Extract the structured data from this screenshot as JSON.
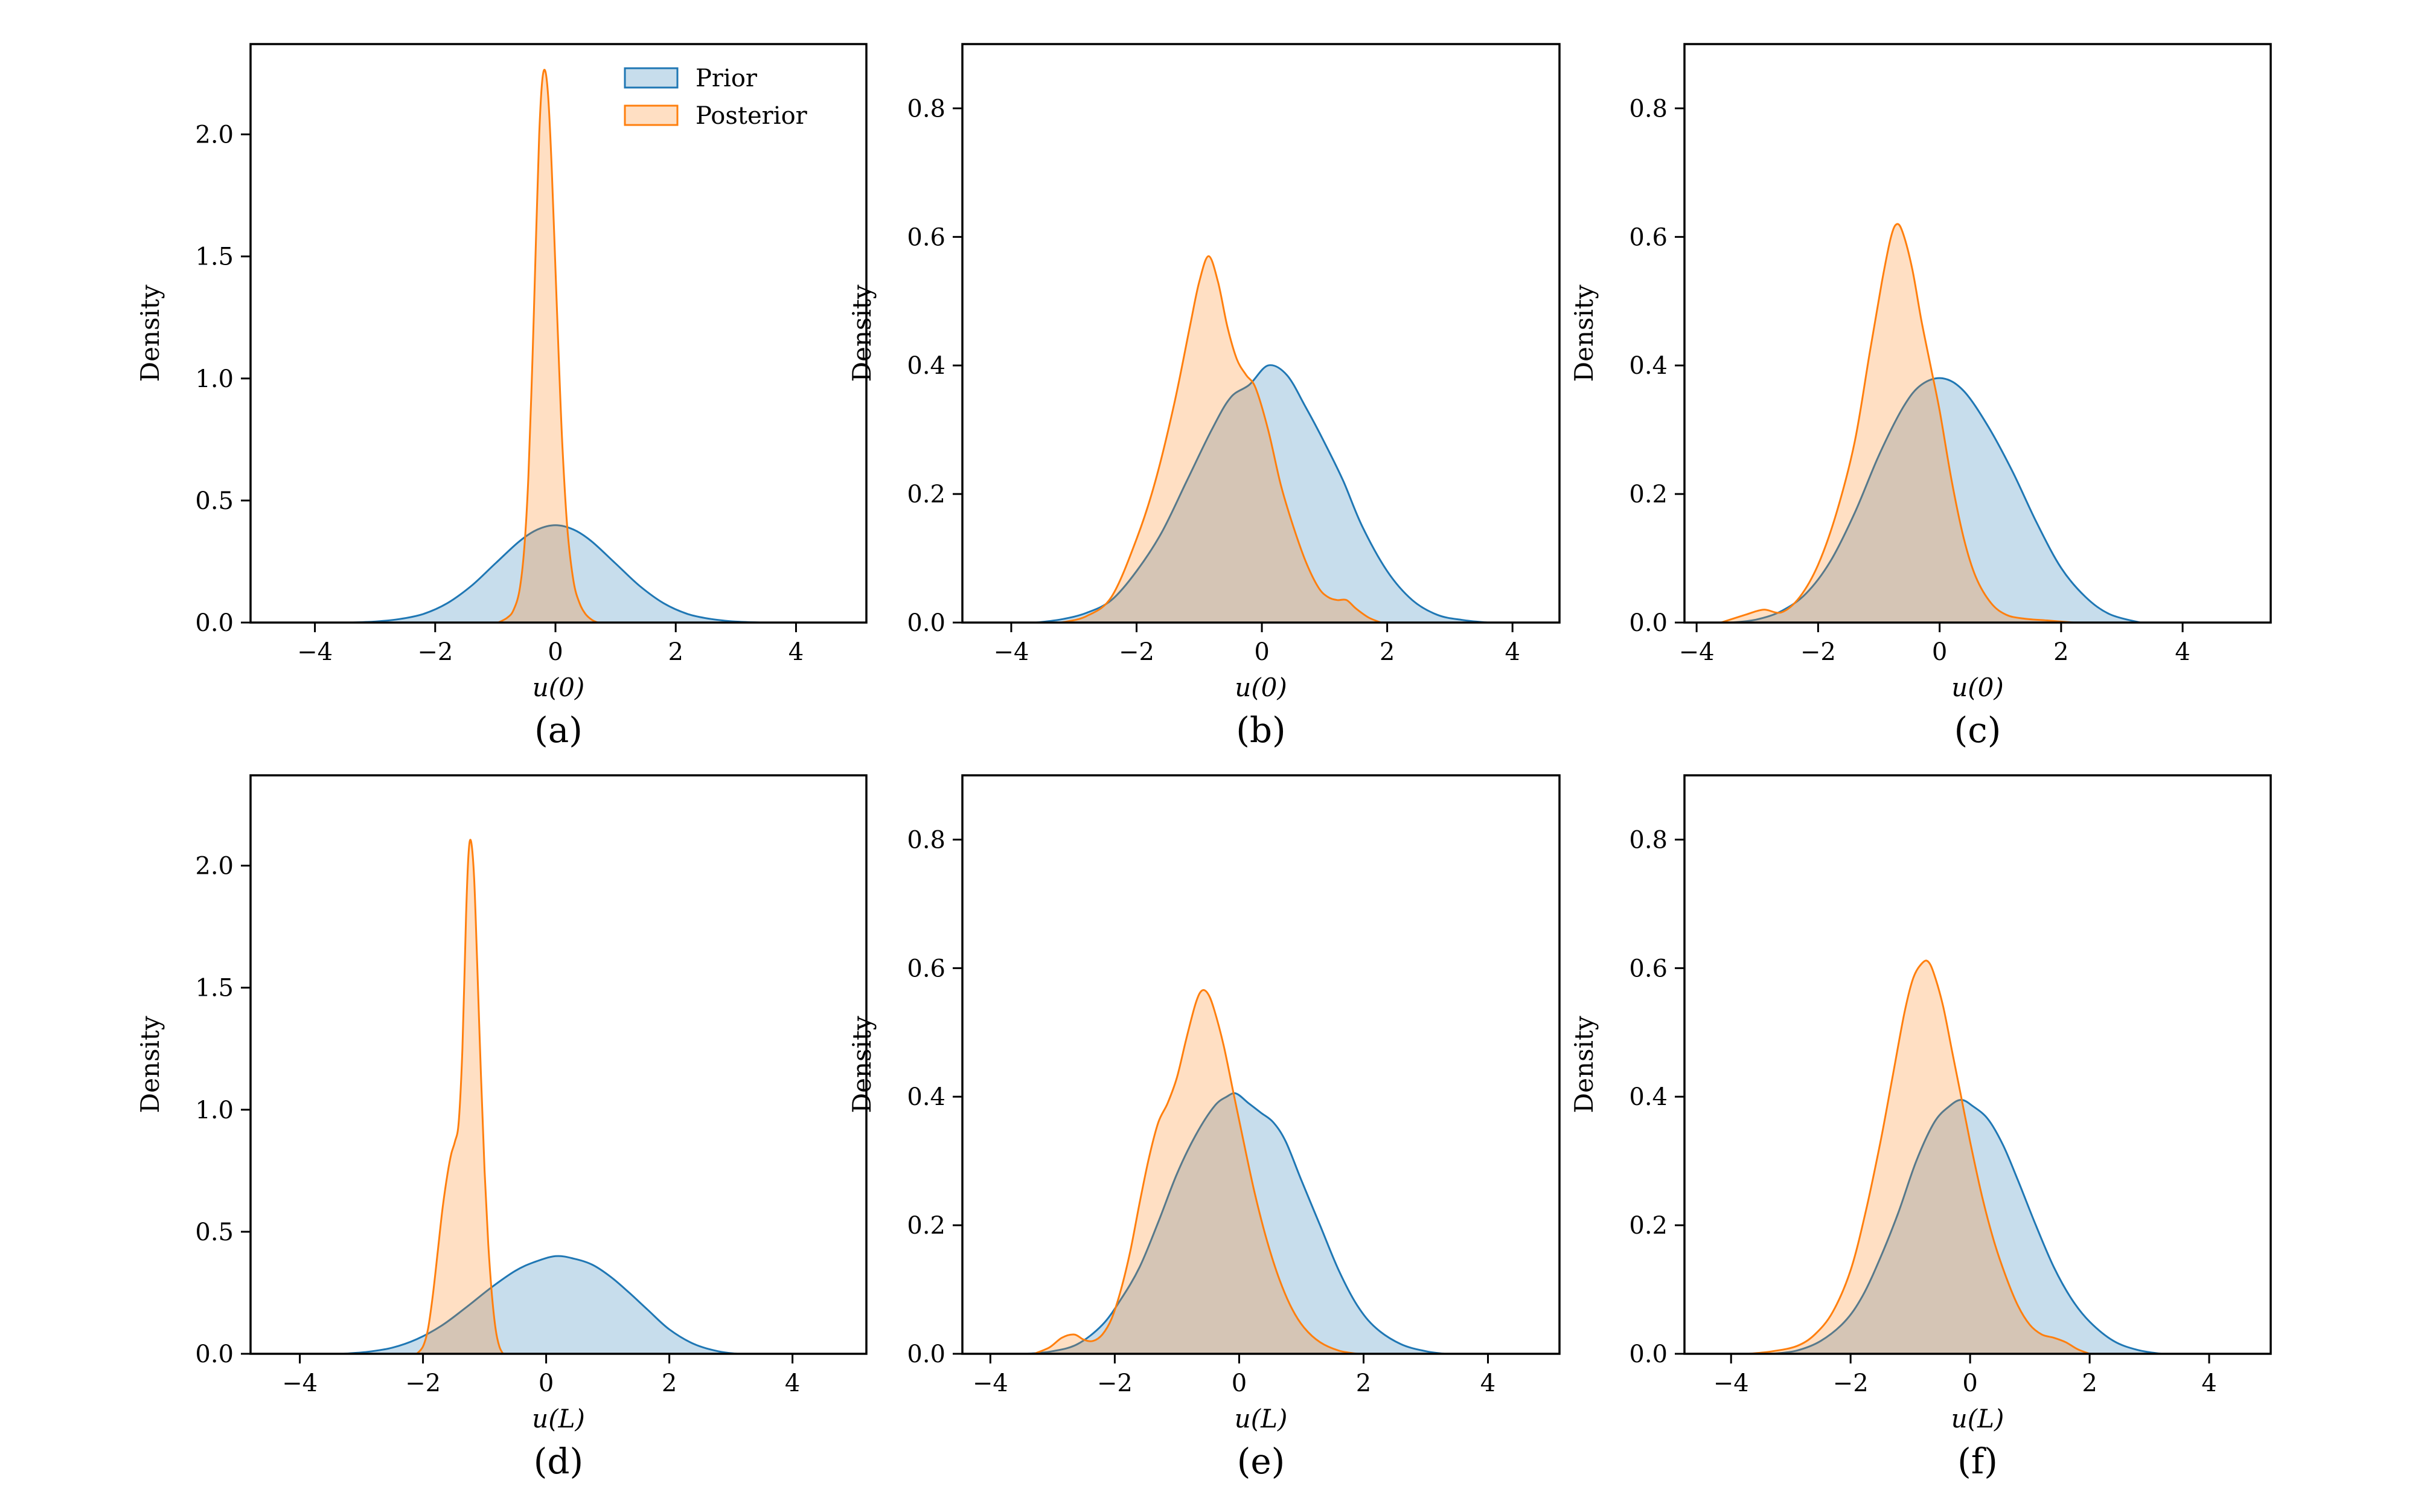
{
  "figure": {
    "description": "Grid of six kernel density plots comparing prior and posterior distributions",
    "ylabel": "Density"
  },
  "colors": {
    "prior_line": "#1f77b4",
    "posterior_line": "#ff7f0e",
    "fill_alpha": 0.25,
    "axis_color": "#000000",
    "background": "#ffffff"
  },
  "legend": {
    "position": "top-right-of-panel-a",
    "items": [
      {
        "label": "Prior",
        "color": "#1f77b4"
      },
      {
        "label": "Posterior",
        "color": "#ff7f0e"
      }
    ]
  },
  "chart_data": [
    {
      "id": "a",
      "type": "area",
      "caption": "(a)",
      "xlabel": "u(0)",
      "ylabel": "Density",
      "xlim": [
        -5.07,
        5.17
      ],
      "ylim": [
        0,
        2.37
      ],
      "xticks": [
        -4,
        -2,
        0,
        2,
        4
      ],
      "xtick_labels": [
        "−4",
        "−2",
        "0",
        "2",
        "4"
      ],
      "yticks": [
        0,
        0.5,
        1.0,
        1.5,
        2.0
      ],
      "ytick_labels": [
        "0.0",
        "0.5",
        "1.0",
        "1.5",
        "2.0"
      ],
      "series": [
        {
          "name": "Prior",
          "x": [
            -3.4,
            -3.0,
            -2.6,
            -2.2,
            -1.8,
            -1.4,
            -1.0,
            -0.6,
            -0.3,
            0.0,
            0.3,
            0.6,
            1.0,
            1.4,
            1.8,
            2.2,
            2.6,
            3.0,
            3.4
          ],
          "y": [
            0,
            0.004,
            0.014,
            0.035,
            0.079,
            0.15,
            0.242,
            0.333,
            0.381,
            0.399,
            0.381,
            0.333,
            0.242,
            0.15,
            0.079,
            0.035,
            0.014,
            0.004,
            0
          ]
        },
        {
          "name": "Posterior",
          "x": [
            -0.95,
            -0.8,
            -0.7,
            -0.6,
            -0.52,
            -0.45,
            -0.38,
            -0.32,
            -0.27,
            -0.22,
            -0.17,
            -0.12,
            -0.06,
            0.0,
            0.06,
            0.12,
            0.2,
            0.3,
            0.4,
            0.5,
            0.6,
            0.7
          ],
          "y": [
            0,
            0.02,
            0.05,
            0.13,
            0.3,
            0.6,
            1.1,
            1.6,
            2.0,
            2.22,
            2.26,
            2.15,
            1.85,
            1.45,
            1.05,
            0.7,
            0.38,
            0.17,
            0.08,
            0.035,
            0.012,
            0
          ]
        }
      ]
    },
    {
      "id": "b",
      "type": "area",
      "caption": "(b)",
      "xlabel": "u(0)",
      "ylabel": "Density",
      "xlim": [
        -4.78,
        4.75
      ],
      "ylim": [
        0,
        0.9
      ],
      "xticks": [
        -4,
        -2,
        0,
        2,
        4
      ],
      "xtick_labels": [
        "−4",
        "−2",
        "0",
        "2",
        "4"
      ],
      "yticks": [
        0,
        0.2,
        0.4,
        0.6,
        0.8
      ],
      "ytick_labels": [
        "0.0",
        "0.2",
        "0.4",
        "0.6",
        "0.8"
      ],
      "series": [
        {
          "name": "Prior",
          "x": [
            -3.6,
            -3.2,
            -2.8,
            -2.4,
            -2.0,
            -1.6,
            -1.2,
            -0.8,
            -0.5,
            -0.2,
            0.1,
            0.4,
            0.7,
            1.0,
            1.3,
            1.6,
            2.0,
            2.4,
            2.8,
            3.2,
            3.6
          ],
          "y": [
            0,
            0.005,
            0.015,
            0.035,
            0.08,
            0.14,
            0.22,
            0.3,
            0.35,
            0.37,
            0.4,
            0.385,
            0.335,
            0.28,
            0.22,
            0.15,
            0.08,
            0.035,
            0.012,
            0.004,
            0
          ]
        },
        {
          "name": "Posterior",
          "x": [
            -3.2,
            -2.8,
            -2.4,
            -2.0,
            -1.7,
            -1.4,
            -1.15,
            -1.0,
            -0.85,
            -0.7,
            -0.55,
            -0.4,
            -0.25,
            -0.1,
            0.1,
            0.3,
            0.5,
            0.7,
            0.9,
            1.05,
            1.2,
            1.35,
            1.5,
            1.7,
            1.9
          ],
          "y": [
            0,
            0.01,
            0.04,
            0.13,
            0.22,
            0.34,
            0.46,
            0.53,
            0.57,
            0.53,
            0.46,
            0.41,
            0.385,
            0.365,
            0.3,
            0.215,
            0.15,
            0.095,
            0.055,
            0.04,
            0.035,
            0.035,
            0.022,
            0.008,
            0
          ]
        }
      ]
    },
    {
      "id": "c",
      "type": "area",
      "caption": "(c)",
      "xlabel": "u(0)",
      "ylabel": "Density",
      "xlim": [
        -4.2,
        5.45
      ],
      "ylim": [
        0,
        0.9
      ],
      "xticks": [
        -4,
        -2,
        0,
        2,
        4
      ],
      "xtick_labels": [
        "−4",
        "−2",
        "0",
        "2",
        "4"
      ],
      "yticks": [
        0,
        0.2,
        0.4,
        0.6,
        0.8
      ],
      "ytick_labels": [
        "0.0",
        "0.2",
        "0.4",
        "0.6",
        "0.8"
      ],
      "series": [
        {
          "name": "Prior",
          "x": [
            -3.4,
            -3.0,
            -2.6,
            -2.2,
            -1.8,
            -1.4,
            -1.0,
            -0.6,
            -0.3,
            0.05,
            0.4,
            0.8,
            1.2,
            1.6,
            2.0,
            2.4,
            2.8,
            3.3
          ],
          "y": [
            0,
            0.005,
            0.018,
            0.045,
            0.095,
            0.17,
            0.26,
            0.335,
            0.37,
            0.38,
            0.36,
            0.305,
            0.235,
            0.155,
            0.085,
            0.04,
            0.013,
            0
          ]
        },
        {
          "name": "Posterior",
          "x": [
            -3.6,
            -3.2,
            -2.9,
            -2.6,
            -2.3,
            -2.0,
            -1.7,
            -1.4,
            -1.15,
            -0.95,
            -0.8,
            -0.7,
            -0.6,
            -0.45,
            -0.3,
            -0.15,
            0.0,
            0.2,
            0.4,
            0.6,
            0.85,
            1.1,
            1.4,
            1.8,
            2.2
          ],
          "y": [
            0,
            0.012,
            0.02,
            0.016,
            0.04,
            0.09,
            0.17,
            0.28,
            0.42,
            0.53,
            0.6,
            0.62,
            0.605,
            0.55,
            0.47,
            0.4,
            0.33,
            0.22,
            0.13,
            0.07,
            0.03,
            0.012,
            0.006,
            0.003,
            0
          ]
        }
      ]
    },
    {
      "id": "d",
      "type": "area",
      "caption": "(d)",
      "xlabel": "u(L)",
      "ylabel": "Density",
      "xlim": [
        -4.8,
        5.2
      ],
      "ylim": [
        0,
        2.37
      ],
      "xticks": [
        -4,
        -2,
        0,
        2,
        4
      ],
      "xtick_labels": [
        "−4",
        "−2",
        "0",
        "2",
        "4"
      ],
      "yticks": [
        0,
        0.5,
        1.0,
        1.5,
        2.0
      ],
      "ytick_labels": [
        "0.0",
        "0.5",
        "1.0",
        "1.5",
        "2.0"
      ],
      "series": [
        {
          "name": "Prior",
          "x": [
            -3.3,
            -2.9,
            -2.5,
            -2.1,
            -1.7,
            -1.3,
            -0.9,
            -0.5,
            -0.2,
            0.15,
            0.45,
            0.75,
            1.05,
            1.35,
            1.65,
            2.0,
            2.4,
            2.8,
            3.1
          ],
          "y": [
            0,
            0.008,
            0.025,
            0.06,
            0.115,
            0.19,
            0.27,
            0.34,
            0.375,
            0.4,
            0.39,
            0.365,
            0.315,
            0.25,
            0.18,
            0.1,
            0.04,
            0.01,
            0
          ]
        },
        {
          "name": "Posterior",
          "x": [
            -2.1,
            -2.0,
            -1.92,
            -1.84,
            -1.76,
            -1.68,
            -1.6,
            -1.54,
            -1.48,
            -1.42,
            -1.36,
            -1.3,
            -1.26,
            -1.22,
            -1.17,
            -1.12,
            -1.06,
            -1.0,
            -0.94,
            -0.88,
            -0.82,
            -0.76,
            -0.7
          ],
          "y": [
            0,
            0.03,
            0.1,
            0.24,
            0.42,
            0.6,
            0.74,
            0.82,
            0.87,
            0.95,
            1.25,
            1.8,
            2.05,
            2.1,
            1.95,
            1.6,
            1.15,
            0.75,
            0.45,
            0.24,
            0.1,
            0.03,
            0
          ]
        }
      ]
    },
    {
      "id": "e",
      "type": "area",
      "caption": "(e)",
      "xlabel": "u(L)",
      "ylabel": "Density",
      "xlim": [
        -4.45,
        5.15
      ],
      "ylim": [
        0,
        0.9
      ],
      "xticks": [
        -4,
        -2,
        0,
        2,
        4
      ],
      "xtick_labels": [
        "−4",
        "−2",
        "0",
        "2",
        "4"
      ],
      "yticks": [
        0,
        0.2,
        0.4,
        0.6,
        0.8
      ],
      "ytick_labels": [
        "0.0",
        "0.2",
        "0.4",
        "0.6",
        "0.8"
      ],
      "series": [
        {
          "name": "Prior",
          "x": [
            -3.4,
            -3.0,
            -2.6,
            -2.2,
            -1.9,
            -1.6,
            -1.3,
            -1.0,
            -0.7,
            -0.4,
            -0.2,
            -0.05,
            0.15,
            0.35,
            0.55,
            0.75,
            1.0,
            1.3,
            1.6,
            1.9,
            2.2,
            2.6,
            3.0,
            3.3
          ],
          "y": [
            0,
            0.004,
            0.015,
            0.045,
            0.085,
            0.135,
            0.205,
            0.28,
            0.34,
            0.385,
            0.4,
            0.405,
            0.39,
            0.375,
            0.36,
            0.33,
            0.27,
            0.2,
            0.13,
            0.075,
            0.04,
            0.015,
            0.004,
            0
          ]
        },
        {
          "name": "Posterior",
          "x": [
            -3.3,
            -3.05,
            -2.85,
            -2.65,
            -2.5,
            -2.35,
            -2.2,
            -2.05,
            -1.9,
            -1.75,
            -1.6,
            -1.45,
            -1.3,
            -1.15,
            -1.0,
            -0.85,
            -0.7,
            -0.6,
            -0.5,
            -0.4,
            -0.25,
            -0.1,
            0.05,
            0.25,
            0.45,
            0.65,
            0.85,
            1.05,
            1.3,
            1.6,
            1.9
          ],
          "y": [
            0,
            0.01,
            0.025,
            0.03,
            0.022,
            0.02,
            0.03,
            0.055,
            0.1,
            0.16,
            0.235,
            0.305,
            0.36,
            0.39,
            0.43,
            0.49,
            0.545,
            0.565,
            0.56,
            0.535,
            0.48,
            0.41,
            0.34,
            0.25,
            0.175,
            0.115,
            0.07,
            0.04,
            0.018,
            0.005,
            0
          ]
        }
      ]
    },
    {
      "id": "f",
      "type": "area",
      "caption": "(f)",
      "xlabel": "u(L)",
      "ylabel": "Density",
      "xlim": [
        -4.78,
        5.03
      ],
      "ylim": [
        0,
        0.9
      ],
      "xticks": [
        -4,
        -2,
        0,
        2,
        4
      ],
      "xtick_labels": [
        "−4",
        "−2",
        "0",
        "2",
        "4"
      ],
      "yticks": [
        0,
        0.2,
        0.4,
        0.6,
        0.8
      ],
      "ytick_labels": [
        "0.0",
        "0.2",
        "0.4",
        "0.6",
        "0.8"
      ],
      "series": [
        {
          "name": "Prior",
          "x": [
            -3.3,
            -2.9,
            -2.5,
            -2.1,
            -1.8,
            -1.5,
            -1.2,
            -0.9,
            -0.6,
            -0.35,
            -0.15,
            0.05,
            0.3,
            0.55,
            0.8,
            1.1,
            1.4,
            1.7,
            2.0,
            2.4,
            2.8,
            3.2
          ],
          "y": [
            0,
            0.005,
            0.02,
            0.05,
            0.09,
            0.15,
            0.22,
            0.3,
            0.36,
            0.385,
            0.395,
            0.385,
            0.365,
            0.325,
            0.27,
            0.2,
            0.135,
            0.085,
            0.05,
            0.02,
            0.006,
            0
          ]
        },
        {
          "name": "Posterior",
          "x": [
            -3.7,
            -3.3,
            -2.9,
            -2.6,
            -2.3,
            -2.0,
            -1.75,
            -1.5,
            -1.3,
            -1.1,
            -0.95,
            -0.8,
            -0.7,
            -0.6,
            -0.45,
            -0.3,
            -0.15,
            0.0,
            0.2,
            0.4,
            0.6,
            0.8,
            1.0,
            1.2,
            1.4,
            1.6,
            1.8,
            2.0
          ],
          "y": [
            0,
            0.004,
            0.012,
            0.03,
            0.065,
            0.13,
            0.22,
            0.33,
            0.43,
            0.53,
            0.585,
            0.608,
            0.61,
            0.59,
            0.54,
            0.47,
            0.4,
            0.33,
            0.245,
            0.175,
            0.12,
            0.075,
            0.045,
            0.03,
            0.025,
            0.018,
            0.007,
            0
          ]
        }
      ]
    }
  ]
}
